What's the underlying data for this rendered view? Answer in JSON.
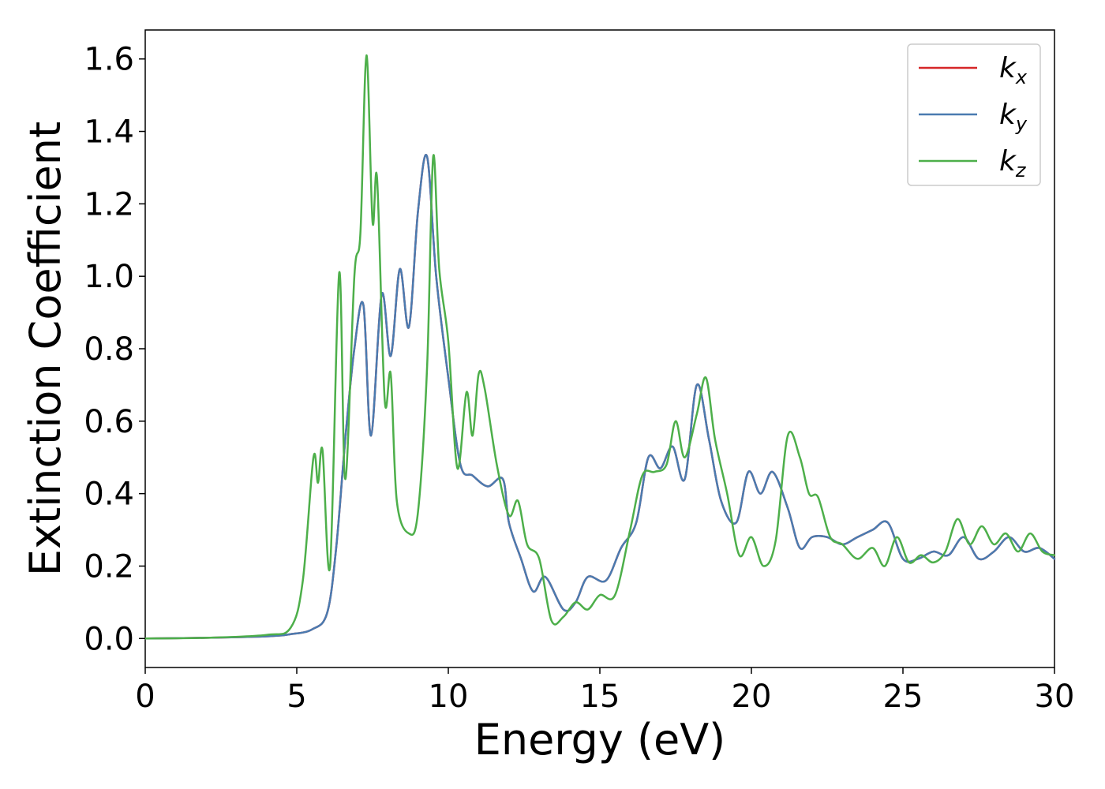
{
  "chart_data": {
    "type": "line",
    "title": "",
    "xlabel": "Energy (eV)",
    "ylabel": "Extinction Coefficient",
    "xlim": [
      0,
      30
    ],
    "ylim": [
      -0.08,
      1.68
    ],
    "xticks": [
      0,
      5,
      10,
      15,
      20,
      25,
      30
    ],
    "xtick_labels": [
      "0",
      "5",
      "10",
      "15",
      "20",
      "25",
      "30"
    ],
    "yticks": [
      0.0,
      0.2,
      0.4,
      0.6,
      0.8,
      1.0,
      1.2,
      1.4,
      1.6
    ],
    "ytick_labels": [
      "0.0",
      "0.2",
      "0.4",
      "0.6",
      "0.8",
      "1.0",
      "1.2",
      "1.4",
      "1.6"
    ],
    "grid": false,
    "legend_position": "top-right",
    "colors": {
      "kx": "#d62728",
      "ky": "#4a7bb0",
      "kz": "#4daf4a"
    },
    "series": [
      {
        "name": "k_x",
        "legend_base": "k",
        "legend_sub": "x",
        "color": "#d62728",
        "x": [
          0,
          2,
          4,
          4.8,
          5.5,
          6.0,
          6.3,
          6.6,
          6.9,
          7.2,
          7.45,
          7.8,
          8.1,
          8.4,
          8.7,
          9.0,
          9.3,
          9.6,
          10.0,
          10.4,
          10.8,
          11.3,
          11.8,
          12.0,
          12.4,
          12.8,
          13.2,
          13.8,
          14.2,
          14.6,
          15.2,
          15.7,
          16.2,
          16.6,
          17.0,
          17.4,
          17.8,
          18.2,
          18.6,
          19.0,
          19.5,
          19.9,
          20.3,
          20.7,
          21.2,
          21.6,
          22.0,
          22.5,
          23.0,
          23.5,
          24.0,
          24.5,
          25.0,
          25.5,
          26.0,
          26.5,
          27.0,
          27.5,
          28.0,
          28.5,
          29.0,
          29.5,
          30.0
        ],
        "y": [
          0.0,
          0.002,
          0.006,
          0.012,
          0.025,
          0.07,
          0.25,
          0.55,
          0.8,
          0.92,
          0.56,
          0.95,
          0.78,
          1.02,
          0.86,
          1.18,
          1.33,
          1.0,
          0.72,
          0.48,
          0.45,
          0.42,
          0.44,
          0.32,
          0.22,
          0.13,
          0.17,
          0.08,
          0.1,
          0.17,
          0.16,
          0.25,
          0.32,
          0.5,
          0.47,
          0.53,
          0.44,
          0.7,
          0.55,
          0.38,
          0.32,
          0.46,
          0.4,
          0.46,
          0.36,
          0.25,
          0.28,
          0.28,
          0.26,
          0.28,
          0.3,
          0.32,
          0.22,
          0.22,
          0.24,
          0.23,
          0.28,
          0.22,
          0.24,
          0.28,
          0.24,
          0.25,
          0.22
        ]
      },
      {
        "name": "k_y",
        "legend_base": "k",
        "legend_sub": "y",
        "color": "#4a7bb0",
        "x": [
          0,
          2,
          4,
          4.8,
          5.5,
          6.0,
          6.3,
          6.6,
          6.9,
          7.2,
          7.45,
          7.8,
          8.1,
          8.4,
          8.7,
          9.0,
          9.3,
          9.6,
          10.0,
          10.4,
          10.8,
          11.3,
          11.8,
          12.0,
          12.4,
          12.8,
          13.2,
          13.8,
          14.2,
          14.6,
          15.2,
          15.7,
          16.2,
          16.6,
          17.0,
          17.4,
          17.8,
          18.2,
          18.6,
          19.0,
          19.5,
          19.9,
          20.3,
          20.7,
          21.2,
          21.6,
          22.0,
          22.5,
          23.0,
          23.5,
          24.0,
          24.5,
          25.0,
          25.5,
          26.0,
          26.5,
          27.0,
          27.5,
          28.0,
          28.5,
          29.0,
          29.5,
          30.0
        ],
        "y": [
          0.0,
          0.002,
          0.006,
          0.012,
          0.025,
          0.07,
          0.25,
          0.55,
          0.8,
          0.92,
          0.56,
          0.95,
          0.78,
          1.02,
          0.86,
          1.18,
          1.33,
          1.0,
          0.72,
          0.48,
          0.45,
          0.42,
          0.44,
          0.32,
          0.22,
          0.13,
          0.17,
          0.08,
          0.1,
          0.17,
          0.16,
          0.25,
          0.32,
          0.5,
          0.47,
          0.53,
          0.44,
          0.7,
          0.55,
          0.38,
          0.32,
          0.46,
          0.4,
          0.46,
          0.36,
          0.25,
          0.28,
          0.28,
          0.26,
          0.28,
          0.3,
          0.32,
          0.22,
          0.22,
          0.24,
          0.23,
          0.28,
          0.22,
          0.24,
          0.28,
          0.24,
          0.25,
          0.22
        ]
      },
      {
        "name": "k_z",
        "legend_base": "k",
        "legend_sub": "z",
        "color": "#4daf4a",
        "x": [
          0,
          2,
          4,
          4.8,
          5.2,
          5.55,
          5.7,
          5.85,
          6.1,
          6.4,
          6.6,
          6.9,
          7.1,
          7.3,
          7.5,
          7.65,
          7.9,
          8.1,
          8.3,
          8.7,
          9.0,
          9.3,
          9.5,
          9.7,
          10.0,
          10.3,
          10.6,
          10.8,
          11.0,
          11.2,
          11.6,
          12.0,
          12.3,
          12.6,
          13.0,
          13.4,
          13.8,
          14.2,
          14.6,
          15.0,
          15.5,
          16.0,
          16.4,
          16.8,
          17.2,
          17.5,
          17.8,
          18.2,
          18.5,
          18.8,
          19.2,
          19.6,
          20.0,
          20.4,
          20.8,
          21.2,
          21.6,
          21.9,
          22.2,
          22.6,
          23.0,
          23.5,
          24.0,
          24.4,
          24.8,
          25.2,
          25.6,
          26.0,
          26.4,
          26.8,
          27.2,
          27.6,
          28.0,
          28.4,
          28.8,
          29.2,
          29.6,
          30.0
        ],
        "y": [
          0.0,
          0.002,
          0.01,
          0.03,
          0.16,
          0.5,
          0.43,
          0.52,
          0.2,
          1.01,
          0.44,
          1.0,
          1.12,
          1.61,
          1.15,
          1.27,
          0.66,
          0.73,
          0.38,
          0.29,
          0.35,
          0.75,
          1.33,
          1.02,
          0.82,
          0.47,
          0.68,
          0.56,
          0.73,
          0.69,
          0.48,
          0.34,
          0.38,
          0.26,
          0.22,
          0.05,
          0.06,
          0.1,
          0.08,
          0.12,
          0.12,
          0.3,
          0.45,
          0.46,
          0.48,
          0.6,
          0.5,
          0.62,
          0.72,
          0.55,
          0.4,
          0.23,
          0.28,
          0.2,
          0.27,
          0.56,
          0.5,
          0.4,
          0.39,
          0.28,
          0.26,
          0.22,
          0.25,
          0.2,
          0.28,
          0.21,
          0.23,
          0.21,
          0.24,
          0.33,
          0.26,
          0.31,
          0.26,
          0.29,
          0.24,
          0.29,
          0.24,
          0.23
        ]
      }
    ]
  }
}
